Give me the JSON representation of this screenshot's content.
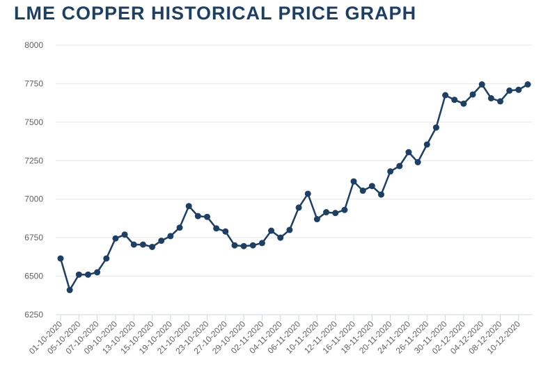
{
  "chart_data": {
    "type": "line",
    "title": "LME COPPER HISTORICAL PRICE GRAPH",
    "xlabel": "",
    "ylabel": "",
    "ylim": [
      6250,
      8000
    ],
    "yticks": [
      6250,
      6500,
      6750,
      7000,
      7250,
      7500,
      7750,
      8000
    ],
    "x": [
      "01-10-2020",
      "02-10-2020",
      "05-10-2020",
      "06-10-2020",
      "07-10-2020",
      "08-10-2020",
      "09-10-2020",
      "12-10-2020",
      "13-10-2020",
      "14-10-2020",
      "15-10-2020",
      "16-10-2020",
      "19-10-2020",
      "20-10-2020",
      "21-10-2020",
      "22-10-2020",
      "23-10-2020",
      "26-10-2020",
      "27-10-2020",
      "28-10-2020",
      "29-10-2020",
      "30-10-2020",
      "02-11-2020",
      "03-11-2020",
      "04-11-2020",
      "05-11-2020",
      "06-11-2020",
      "09-11-2020",
      "10-11-2020",
      "11-11-2020",
      "12-11-2020",
      "13-11-2020",
      "16-11-2020",
      "17-11-2020",
      "18-11-2020",
      "19-11-2020",
      "20-11-2020",
      "23-11-2020",
      "24-11-2020",
      "25-11-2020",
      "26-11-2020",
      "27-11-2020",
      "30-11-2020",
      "01-12-2020",
      "02-12-2020",
      "03-12-2020",
      "04-12-2020",
      "07-12-2020",
      "08-12-2020",
      "09-12-2020",
      "10-12-2020",
      "11-12-2020"
    ],
    "xtick_labels": [
      "01-10-2020",
      "05-10-2020",
      "07-10-2020",
      "09-10-2020",
      "13-10-2020",
      "15-10-2020",
      "19-10-2020",
      "21-10-2020",
      "23-10-2020",
      "27-10-2020",
      "29-10-2020",
      "02-11-2020",
      "04-11-2020",
      "06-11-2020",
      "10-11-2020",
      "12-11-2020",
      "16-11-2020",
      "18-11-2020",
      "20-11-2020",
      "24-11-2020",
      "26-11-2020",
      "30-11-2020",
      "02-12-2020",
      "04-12-2020",
      "08-12-2020",
      "10-12-2020"
    ],
    "series": [
      {
        "color": "#1c3f66",
        "values": [
          6615,
          6410,
          6510,
          6510,
          6525,
          6615,
          6745,
          6770,
          6705,
          6705,
          6690,
          6730,
          6760,
          6815,
          6955,
          6890,
          6885,
          6810,
          6790,
          6700,
          6695,
          6700,
          6715,
          6795,
          6750,
          6800,
          6945,
          7035,
          6870,
          6915,
          6910,
          6930,
          7115,
          7055,
          7085,
          7030,
          7180,
          7215,
          7305,
          7240,
          7355,
          7465,
          7675,
          7645,
          7620,
          7680,
          7745,
          7655,
          7635,
          7705,
          7710,
          7745
        ]
      }
    ],
    "grid": true,
    "legend": "none"
  }
}
